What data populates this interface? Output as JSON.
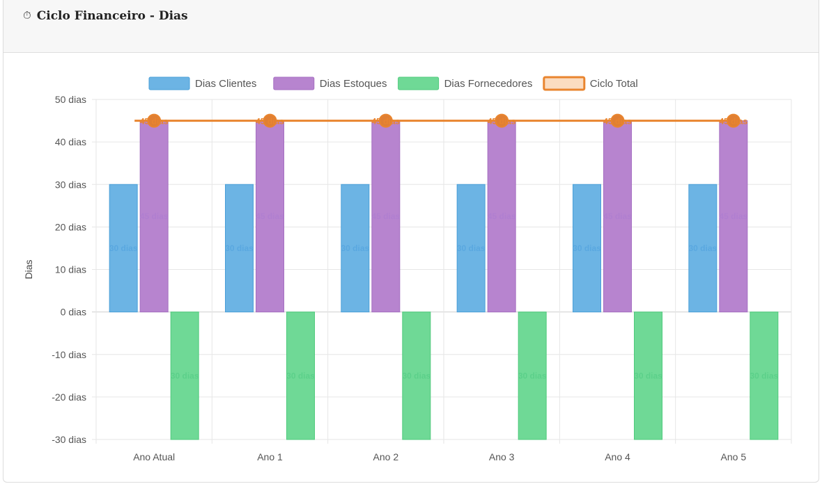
{
  "card": {
    "icon": "stopwatch-icon",
    "icon_glyph": "⏱",
    "title": "Ciclo Financeiro - Dias"
  },
  "chart_data": {
    "type": "bar",
    "categories": [
      "Ano Atual",
      "Ano 1",
      "Ano 2",
      "Ano 3",
      "Ano 4",
      "Ano 5"
    ],
    "ylabel": "Dias",
    "ylim": [
      -30,
      50
    ],
    "y_ticks": [
      50,
      40,
      30,
      20,
      10,
      0,
      -10,
      -20,
      -30
    ],
    "y_tick_suffix": " dias",
    "grid": true,
    "legend_position": "top",
    "series": [
      {
        "name": "Dias Clientes",
        "kind": "bar",
        "color": "#6cb4e4",
        "border": "#4a9fd8",
        "label_color": "#5aa8e0",
        "values": [
          30,
          30,
          30,
          30,
          30,
          30
        ],
        "labels": [
          "30 dias",
          "30 dias",
          "30 dias",
          "30 dias",
          "30 dias",
          "30 dias"
        ]
      },
      {
        "name": "Dias Estoques",
        "kind": "bar",
        "color": "#b784cf",
        "border": "#a56fc1",
        "label_color": "#b07fd0",
        "values": [
          45,
          45,
          45,
          45,
          45,
          45
        ],
        "labels": [
          "45 dias",
          "45 dias",
          "45 dias",
          "45 dias",
          "45 dias",
          "45 dias"
        ]
      },
      {
        "name": "Dias Fornecedores",
        "kind": "bar",
        "color": "#6fd996",
        "border": "#4fca7c",
        "label_color": "#5cd08a",
        "values": [
          -30,
          -30,
          -30,
          -30,
          -30,
          -30
        ],
        "labels": [
          "30 dias",
          "30 dias",
          "30 dias",
          "30 dias",
          "30 dias",
          "30 dias"
        ]
      },
      {
        "name": "Ciclo Total",
        "kind": "line",
        "color": "#e9852f",
        "fill": "#fbdcc0",
        "label_color": "#e9852f",
        "values": [
          45,
          45,
          45,
          45,
          45,
          45
        ],
        "labels": [
          "45 dias",
          "45 dias",
          "45 dias",
          "45 dias",
          "45 dias",
          "45 dias"
        ]
      }
    ]
  }
}
